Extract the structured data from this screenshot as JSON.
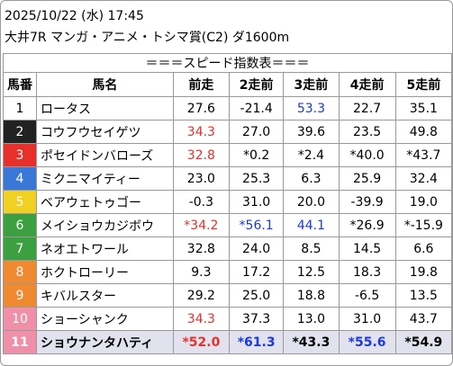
{
  "header": {
    "date": "2025/10/22 (水) 17:45",
    "race": "大井7R マンガ・アニメ・トシマ賞(C2) ダ1600m"
  },
  "table": {
    "title": "＝＝＝スピード指数表＝＝＝",
    "columns": [
      "馬番",
      "馬名",
      "前走",
      "2走前",
      "3走前",
      "4走前",
      "5走前"
    ],
    "rows": [
      {
        "no": "1",
        "name": "ロータス",
        "frame_bg": "#ffffff",
        "frame_fg": "#000000",
        "values": [
          "27.6",
          "-21.4",
          "53.3",
          "22.7",
          "35.1"
        ],
        "colors": [
          "black",
          "black",
          "blue",
          "black",
          "black"
        ]
      },
      {
        "no": "2",
        "name": "コウフウセイゲツ",
        "frame_bg": "#222222",
        "frame_fg": "#ffffff",
        "values": [
          "34.3",
          "27.0",
          "39.6",
          "23.5",
          "49.8"
        ],
        "colors": [
          "red",
          "black",
          "black",
          "black",
          "black"
        ]
      },
      {
        "no": "3",
        "name": "ポセイドンバローズ",
        "frame_bg": "#e8302a",
        "frame_fg": "#ffffff",
        "values": [
          "32.8",
          "*0.2",
          "*2.4",
          "*40.0",
          "*43.7"
        ],
        "colors": [
          "red",
          "black",
          "black",
          "black",
          "black"
        ]
      },
      {
        "no": "4",
        "name": "ミクニマイティー",
        "frame_bg": "#3a78d8",
        "frame_fg": "#ffffff",
        "values": [
          "23.0",
          "25.3",
          "6.3",
          "25.9",
          "32.4"
        ],
        "colors": [
          "black",
          "black",
          "black",
          "black",
          "black"
        ]
      },
      {
        "no": "5",
        "name": "ベアウェトゥゴー",
        "frame_bg": "#f0d020",
        "frame_fg": "#ffffff",
        "values": [
          "-0.3",
          "31.0",
          "20.0",
          "-39.9",
          "19.0"
        ],
        "colors": [
          "black",
          "black",
          "black",
          "black",
          "black"
        ]
      },
      {
        "no": "6",
        "name": "メイショウカジボウ",
        "frame_bg": "#3aa040",
        "frame_fg": "#ffffff",
        "values": [
          "*34.2",
          "*56.1",
          "44.1",
          "*26.9",
          "*-15.9"
        ],
        "colors": [
          "red",
          "blue",
          "blue",
          "black",
          "black"
        ]
      },
      {
        "no": "7",
        "name": "ネオエトワール",
        "frame_bg": "#3aa040",
        "frame_fg": "#ffffff",
        "values": [
          "32.8",
          "24.0",
          "8.5",
          "14.5",
          "6.6"
        ],
        "colors": [
          "black",
          "black",
          "black",
          "black",
          "black"
        ]
      },
      {
        "no": "8",
        "name": "ホクトローリー",
        "frame_bg": "#f08a30",
        "frame_fg": "#ffffff",
        "values": [
          "9.3",
          "17.2",
          "12.5",
          "18.3",
          "19.8"
        ],
        "colors": [
          "black",
          "black",
          "black",
          "black",
          "black"
        ]
      },
      {
        "no": "9",
        "name": "キバルスター",
        "frame_bg": "#f08a30",
        "frame_fg": "#ffffff",
        "values": [
          "29.2",
          "25.0",
          "18.8",
          "-6.5",
          "13.5"
        ],
        "colors": [
          "black",
          "black",
          "black",
          "black",
          "black"
        ]
      },
      {
        "no": "10",
        "name": "ショーシャンク",
        "frame_bg": "#f090a8",
        "frame_fg": "#ffffff",
        "values": [
          "34.3",
          "37.3",
          "13.0",
          "31.0",
          "43.7"
        ],
        "colors": [
          "red",
          "black",
          "black",
          "black",
          "black"
        ]
      },
      {
        "no": "11",
        "name": "ショウナンタハティ",
        "frame_bg": "#f090a8",
        "frame_fg": "#ffffff",
        "values": [
          "*52.0",
          "*61.3",
          "*43.3",
          "*55.6",
          "*54.9"
        ],
        "colors": [
          "red",
          "blue",
          "black",
          "blue",
          "black"
        ],
        "highlight": true
      }
    ]
  }
}
